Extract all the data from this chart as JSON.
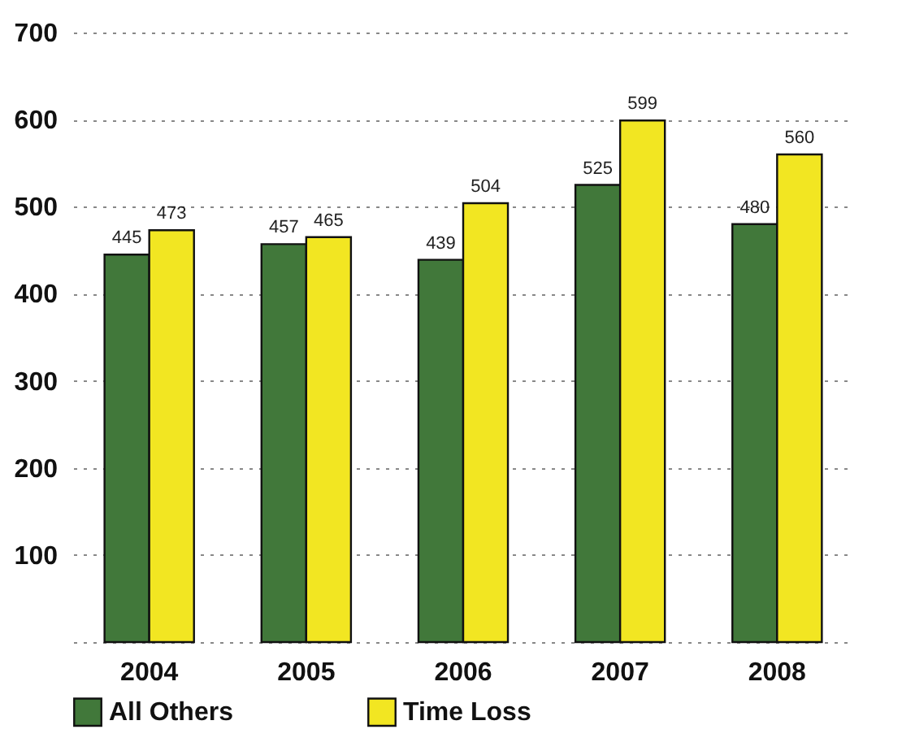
{
  "chart_data": {
    "type": "bar",
    "categories": [
      "2004",
      "2005",
      "2006",
      "2007",
      "2008"
    ],
    "series": [
      {
        "name": "All Others",
        "color": "#41783a",
        "values": [
          445,
          457,
          439,
          525,
          480
        ]
      },
      {
        "name": "Time Loss",
        "color": "#f2e622",
        "values": [
          473,
          465,
          504,
          599,
          560
        ]
      }
    ],
    "ylim": [
      0,
      700
    ],
    "yticks": [
      {
        "value": 0,
        "label": null
      },
      100,
      200,
      300,
      400,
      500,
      600,
      700
    ],
    "grid": "y",
    "legend": "bottom",
    "data_labels": true
  }
}
